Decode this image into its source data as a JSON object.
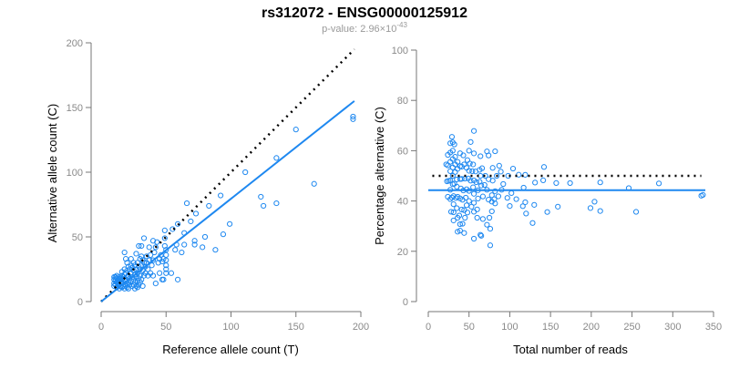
{
  "title": "rs312072 - ENSG00000125912",
  "subtitle_prefix": "p-value: 2.96×10",
  "subtitle_exponent": "-43",
  "colors": {
    "points": "#1e88f0",
    "fit": "#1e88f0",
    "reference": "#000000",
    "axis": "#777777",
    "ticks": "#8a8a8a"
  },
  "chart_data": [
    {
      "type": "scatter",
      "xlabel": "Reference allele count (T)",
      "ylabel": "Alternative allele count (C)",
      "xlim": [
        0,
        200
      ],
      "ylim": [
        0,
        200
      ],
      "xticks": [
        "0",
        "50",
        "100",
        "150",
        "200"
      ],
      "yticks": [
        "0",
        "50",
        "100",
        "150",
        "200"
      ],
      "fit_line": {
        "slope": 0.795,
        "intercept": 0,
        "x_range": [
          0,
          195
        ]
      },
      "reference_line": {
        "slope": 1,
        "intercept": 0,
        "x_range": [
          0,
          195
        ],
        "style": "dotted"
      },
      "points_ref_alt": [
        [
          194,
          143
        ],
        [
          194,
          141
        ],
        [
          150,
          133
        ],
        [
          135,
          111
        ],
        [
          111,
          100
        ],
        [
          164,
          91
        ],
        [
          123,
          81
        ],
        [
          125,
          74
        ],
        [
          135,
          76
        ],
        [
          92,
          82
        ],
        [
          83,
          74
        ],
        [
          99,
          60
        ],
        [
          94,
          52
        ],
        [
          88,
          40
        ],
        [
          80,
          50
        ],
        [
          78,
          42
        ],
        [
          72,
          47
        ],
        [
          72,
          44
        ],
        [
          73,
          68
        ],
        [
          69,
          62
        ],
        [
          66,
          76
        ],
        [
          64,
          53
        ],
        [
          64,
          44
        ],
        [
          62,
          38
        ],
        [
          59,
          60
        ],
        [
          58,
          44
        ],
        [
          57,
          40
        ],
        [
          59,
          17
        ],
        [
          55,
          56
        ],
        [
          49,
          55
        ],
        [
          49,
          49
        ],
        [
          49,
          43
        ],
        [
          50,
          40
        ],
        [
          50,
          36
        ],
        [
          50,
          32
        ],
        [
          50,
          28
        ],
        [
          50,
          25
        ],
        [
          50,
          22
        ],
        [
          54,
          22
        ],
        [
          10,
          19
        ],
        [
          10,
          17
        ],
        [
          10,
          14
        ],
        [
          10,
          12
        ],
        [
          11,
          19
        ],
        [
          11,
          16
        ],
        [
          11,
          13
        ],
        [
          12,
          20
        ],
        [
          12,
          18
        ],
        [
          12,
          15
        ],
        [
          12,
          11
        ],
        [
          13,
          17
        ],
        [
          13,
          14
        ],
        [
          13,
          12
        ],
        [
          14,
          19
        ],
        [
          14,
          16
        ],
        [
          14,
          13
        ],
        [
          14,
          10
        ],
        [
          15,
          18
        ],
        [
          15,
          15
        ],
        [
          15,
          12
        ],
        [
          16,
          23
        ],
        [
          16,
          20
        ],
        [
          16,
          17
        ],
        [
          16,
          14
        ],
        [
          16,
          11
        ],
        [
          17,
          19
        ],
        [
          17,
          15
        ],
        [
          17,
          12
        ],
        [
          18,
          25
        ],
        [
          18,
          21
        ],
        [
          18,
          17
        ],
        [
          18,
          13
        ],
        [
          18,
          10
        ],
        [
          19,
          33
        ],
        [
          19,
          22
        ],
        [
          19,
          16
        ],
        [
          19,
          12
        ],
        [
          20,
          30
        ],
        [
          20,
          24
        ],
        [
          20,
          19
        ],
        [
          20,
          14
        ],
        [
          20,
          11
        ],
        [
          21,
          27
        ],
        [
          21,
          20
        ],
        [
          21,
          15
        ],
        [
          21,
          10
        ],
        [
          22,
          25
        ],
        [
          22,
          18
        ],
        [
          22,
          13
        ],
        [
          23,
          33
        ],
        [
          23,
          28
        ],
        [
          23,
          22
        ],
        [
          23,
          16
        ],
        [
          24,
          26
        ],
        [
          24,
          19
        ],
        [
          24,
          12
        ],
        [
          25,
          30
        ],
        [
          25,
          24
        ],
        [
          25,
          17
        ],
        [
          25,
          13
        ],
        [
          26,
          28
        ],
        [
          26,
          21
        ],
        [
          26,
          15
        ],
        [
          26,
          10
        ],
        [
          27,
          37
        ],
        [
          27,
          25
        ],
        [
          27,
          19
        ],
        [
          27,
          12
        ],
        [
          28,
          30
        ],
        [
          28,
          22
        ],
        [
          28,
          16
        ],
        [
          28,
          11
        ],
        [
          29,
          43
        ],
        [
          29,
          27
        ],
        [
          29,
          18
        ],
        [
          29,
          13
        ],
        [
          30,
          33
        ],
        [
          30,
          25
        ],
        [
          30,
          20
        ],
        [
          30,
          15
        ],
        [
          31,
          43
        ],
        [
          31,
          35
        ],
        [
          31,
          28
        ],
        [
          31,
          17
        ],
        [
          32,
          32
        ],
        [
          32,
          24
        ],
        [
          32,
          12
        ],
        [
          33,
          49
        ],
        [
          33,
          30
        ],
        [
          33,
          20
        ],
        [
          34,
          27
        ],
        [
          34,
          22
        ],
        [
          35,
          35
        ],
        [
          35,
          30
        ],
        [
          36,
          25
        ],
        [
          36,
          20
        ],
        [
          37,
          42
        ],
        [
          37,
          32
        ],
        [
          38,
          22
        ],
        [
          38,
          36
        ],
        [
          39,
          28
        ],
        [
          40,
          47
        ],
        [
          40,
          20
        ],
        [
          40,
          32
        ],
        [
          41,
          38
        ],
        [
          42,
          42
        ],
        [
          42,
          14
        ],
        [
          43,
          46
        ],
        [
          44,
          30
        ],
        [
          45,
          22
        ],
        [
          45,
          33
        ],
        [
          46,
          36
        ],
        [
          47,
          17
        ],
        [
          47,
          31
        ],
        [
          48,
          17
        ],
        [
          48,
          33
        ],
        [
          18,
          38
        ]
      ]
    },
    {
      "type": "scatter",
      "xlabel": "Total number of reads",
      "ylabel": "Percentage alternative (C)",
      "xlim": [
        0,
        350
      ],
      "ylim": [
        0,
        100
      ],
      "xticks": [
        "0",
        "50",
        "100",
        "150",
        "200",
        "250",
        "300",
        "350"
      ],
      "yticks": [
        "0",
        "20",
        "40",
        "60",
        "80",
        "100"
      ],
      "fit_line": {
        "y": 44.3,
        "x_range": [
          0,
          340
        ]
      },
      "reference_line": {
        "y": 50,
        "x_range": [
          5,
          335
        ],
        "style": "dotted"
      }
    }
  ]
}
